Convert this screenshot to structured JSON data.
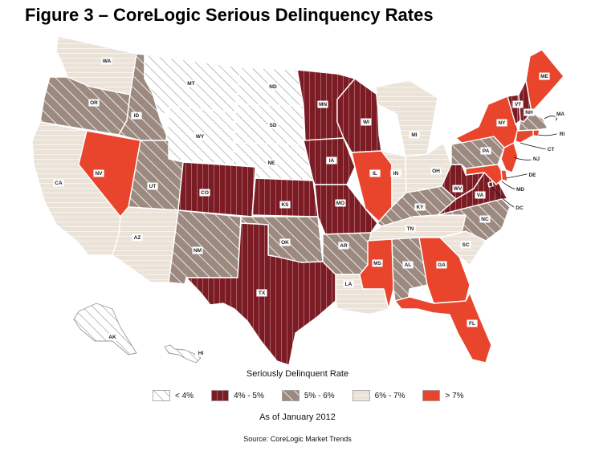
{
  "title": "Figure 3 – CoreLogic Serious Delinquency Rates",
  "legend_title": "Seriously Delinquent Rate",
  "as_of": "As of January 2012",
  "source": "Source: CoreLogic Market Trends",
  "colors": {
    "c1": "#ffffff",
    "c2": "#7b1c24",
    "c3": "#9c8a80",
    "c4": "#ebe2d8",
    "c5": "#e8452c",
    "border": "#ffffff",
    "outline": "#9a9a9a"
  },
  "legend": [
    {
      "key": "c1",
      "label": "< 4%"
    },
    {
      "key": "c2",
      "label": "4% - 5%"
    },
    {
      "key": "c3",
      "label": "5% - 6%"
    },
    {
      "key": "c4",
      "label": "6% - 7%"
    },
    {
      "key": "c5",
      "label": "> 7%"
    }
  ],
  "states": [
    {
      "id": "WA",
      "label": "WA",
      "cat": "c4"
    },
    {
      "id": "OR",
      "label": "OR",
      "cat": "c3"
    },
    {
      "id": "CA",
      "label": "CA",
      "cat": "c4"
    },
    {
      "id": "NV",
      "label": "NV",
      "cat": "c5"
    },
    {
      "id": "ID",
      "label": "ID",
      "cat": "c3"
    },
    {
      "id": "MT",
      "label": "MT",
      "cat": "c1"
    },
    {
      "id": "WY",
      "label": "WY",
      "cat": "c1"
    },
    {
      "id": "UT",
      "label": "UT",
      "cat": "c3"
    },
    {
      "id": "AZ",
      "label": "AZ",
      "cat": "c4"
    },
    {
      "id": "CO",
      "label": "CO",
      "cat": "c2"
    },
    {
      "id": "NM",
      "label": "NM",
      "cat": "c3"
    },
    {
      "id": "ND",
      "label": "ND",
      "cat": "c1"
    },
    {
      "id": "SD",
      "label": "SD",
      "cat": "c1"
    },
    {
      "id": "NE",
      "label": "NE",
      "cat": "c1"
    },
    {
      "id": "KS",
      "label": "KS",
      "cat": "c2"
    },
    {
      "id": "OK",
      "label": "OK",
      "cat": "c3"
    },
    {
      "id": "TX",
      "label": "TX",
      "cat": "c2"
    },
    {
      "id": "MN",
      "label": "MN",
      "cat": "c2"
    },
    {
      "id": "IA",
      "label": "IA",
      "cat": "c2"
    },
    {
      "id": "MO",
      "label": "MO",
      "cat": "c2"
    },
    {
      "id": "AR",
      "label": "AR",
      "cat": "c3"
    },
    {
      "id": "LA",
      "label": "LA",
      "cat": "c4"
    },
    {
      "id": "WI",
      "label": "WI",
      "cat": "c2"
    },
    {
      "id": "IL",
      "label": "IL",
      "cat": "c5"
    },
    {
      "id": "MI",
      "label": "MI",
      "cat": "c4"
    },
    {
      "id": "IN",
      "label": "IN",
      "cat": "c4"
    },
    {
      "id": "OH",
      "label": "OH",
      "cat": "c4"
    },
    {
      "id": "KY",
      "label": "KY",
      "cat": "c3"
    },
    {
      "id": "TN",
      "label": "TN",
      "cat": "c4"
    },
    {
      "id": "MS",
      "label": "MS",
      "cat": "c5"
    },
    {
      "id": "AL",
      "label": "AL",
      "cat": "c3"
    },
    {
      "id": "GA",
      "label": "GA",
      "cat": "c5"
    },
    {
      "id": "FL",
      "label": "FL",
      "cat": "c5"
    },
    {
      "id": "SC",
      "label": "SC",
      "cat": "c4"
    },
    {
      "id": "NC",
      "label": "NC",
      "cat": "c3"
    },
    {
      "id": "VA",
      "label": "VA",
      "cat": "c2"
    },
    {
      "id": "WV",
      "label": "WV",
      "cat": "c2"
    },
    {
      "id": "PA",
      "label": "PA",
      "cat": "c3"
    },
    {
      "id": "NY",
      "label": "NY",
      "cat": "c5"
    },
    {
      "id": "VT",
      "label": "VT",
      "cat": "c2"
    },
    {
      "id": "NH",
      "label": "NH",
      "cat": "c2"
    },
    {
      "id": "ME",
      "label": "ME",
      "cat": "c5"
    },
    {
      "id": "MA",
      "label": "MA",
      "cat": "c3"
    },
    {
      "id": "RI",
      "label": "RI",
      "cat": "c5"
    },
    {
      "id": "CT",
      "label": "CT",
      "cat": "c5"
    },
    {
      "id": "NJ",
      "label": "NJ",
      "cat": "c5"
    },
    {
      "id": "DE",
      "label": "DE",
      "cat": "c5"
    },
    {
      "id": "MD",
      "label": "MD",
      "cat": "c5"
    },
    {
      "id": "DC",
      "label": "DC",
      "cat": "c2"
    },
    {
      "id": "AK",
      "label": "AK",
      "cat": "c1"
    },
    {
      "id": "HI",
      "label": "HI",
      "cat": "c1"
    }
  ]
}
